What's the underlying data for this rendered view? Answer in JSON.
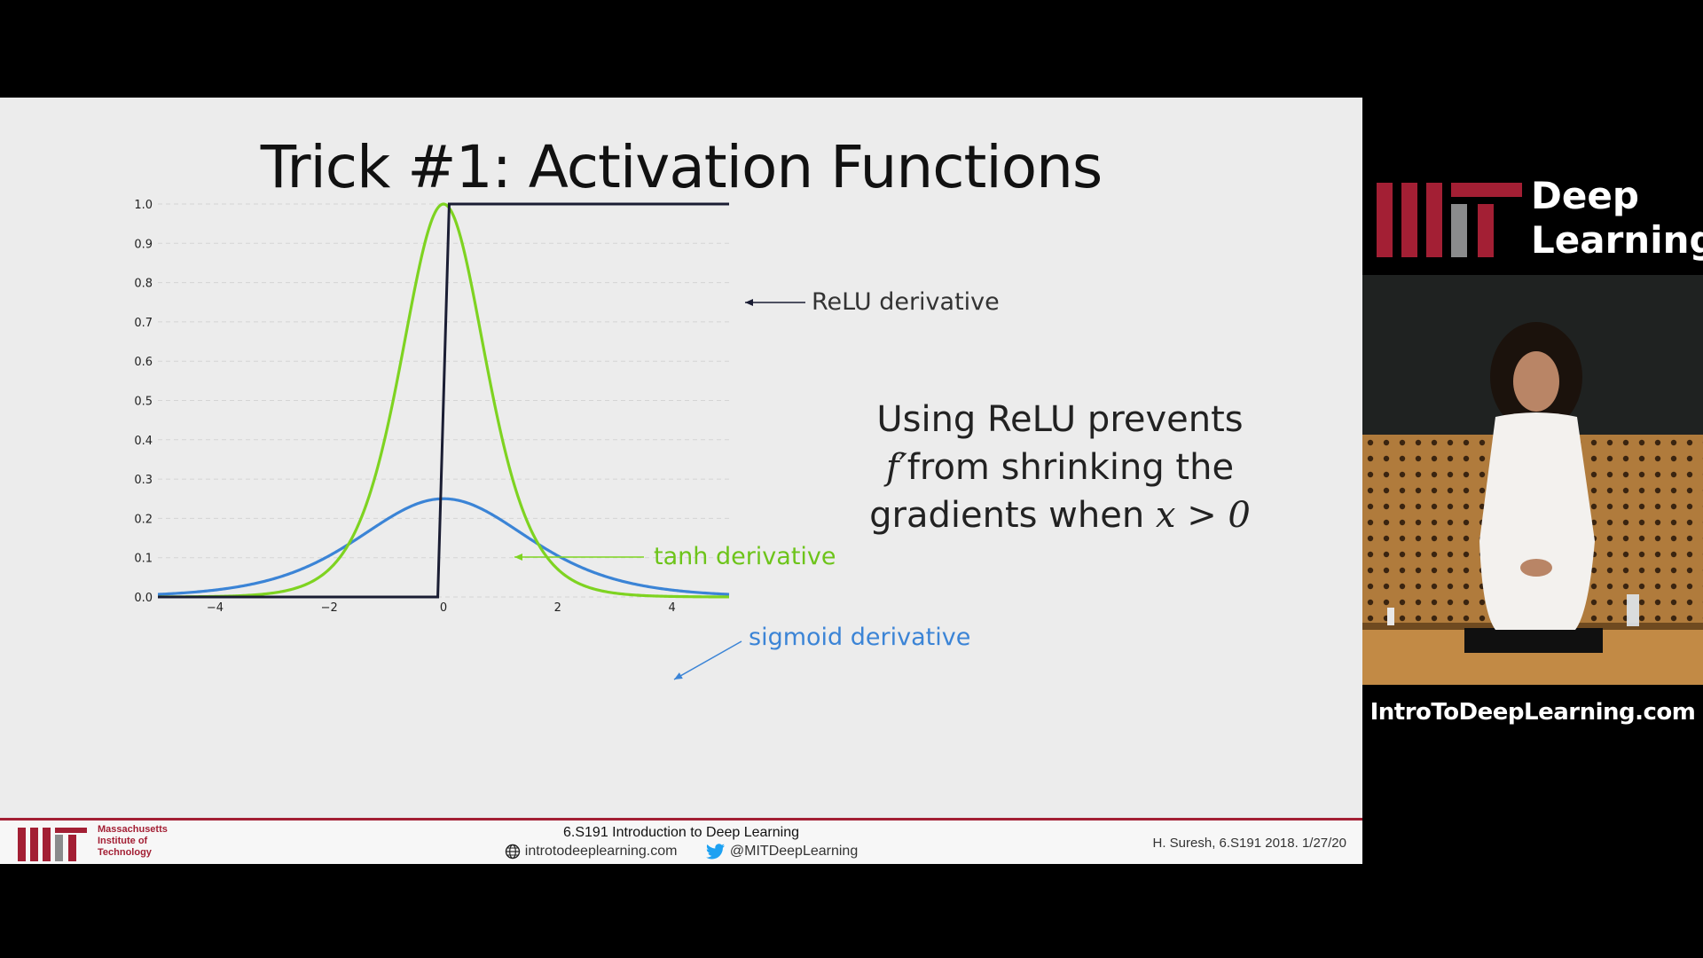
{
  "slide": {
    "title": "Trick #1: Activation Functions",
    "note_line1": "Using ReLU prevents",
    "note_math_f": "f′",
    "note_line2_rest": "from shrinking the",
    "note_line3_prefix": "gradients when ",
    "note_math_cond": "x > 0"
  },
  "chart_data": {
    "type": "line",
    "x_ticks": [
      "−4",
      "−2",
      "0",
      "2",
      "4"
    ],
    "y_ticks": [
      "0.0",
      "0.1",
      "0.2",
      "0.3",
      "0.4",
      "0.5",
      "0.6",
      "0.7",
      "0.8",
      "0.9",
      "1.0"
    ],
    "xlim": [
      -5,
      5
    ],
    "ylim": [
      0,
      1
    ],
    "grid": "horizontal dashed",
    "series": [
      {
        "name": "ReLU derivative",
        "function": "relu_derivative",
        "color": "#1a1d33"
      },
      {
        "name": "tanh derivative",
        "function": "tanh_derivative",
        "color": "#7ed321"
      },
      {
        "name": "sigmoid derivative",
        "function": "sigmoid_derivative",
        "color": "#3b84d6"
      }
    ]
  },
  "footer": {
    "institution_lines": [
      "Massachusetts",
      "Institute of",
      "Technology"
    ],
    "course": "6.S191 Introduction to Deep Learning",
    "website": "introtodeeplearning.com",
    "twitter": "@MITDeepLearning",
    "credit": "H. Suresh, 6.S191 2018.  1/27/20"
  },
  "side_panel": {
    "brand_line1": "Deep",
    "brand_line2": "Learning",
    "site_url": "IntroToDeepLearning.com"
  },
  "colors": {
    "mit_red": "#a31f34",
    "relu": "#1a1d33",
    "tanh": "#7ed321",
    "sigmoid": "#3b84d6"
  }
}
